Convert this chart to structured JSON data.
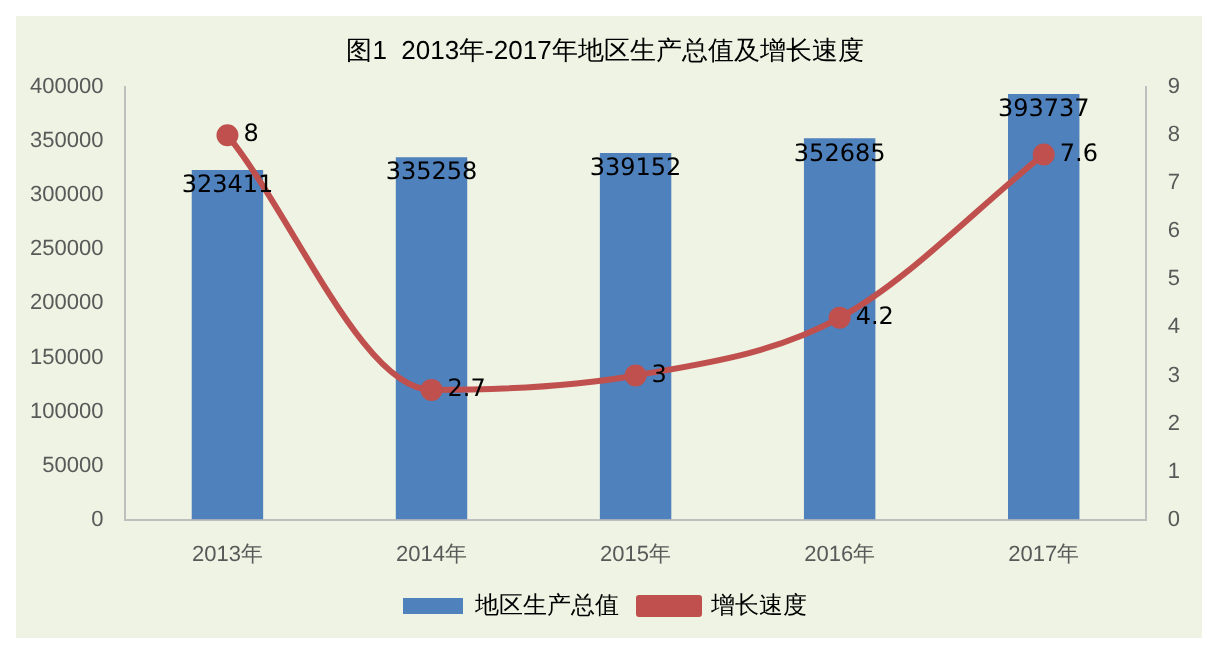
{
  "chart_data": {
    "type": "bar",
    "title": "图1  2013年-2017年地区生产总值及增长速度",
    "categories": [
      "2013年",
      "2014年",
      "2015年",
      "2016年",
      "2017年"
    ],
    "series": [
      {
        "name": "地区生产总值",
        "color": "#4f81bd",
        "values": [
          323411,
          335258,
          339152,
          352685,
          393737
        ]
      },
      {
        "name": "增长速度",
        "type": "line",
        "axis": "y2",
        "color": "#c0504d",
        "marker": "circle",
        "values": [
          8,
          2.7,
          3,
          4.2,
          7.6
        ]
      }
    ],
    "ylim": [
      0,
      400000
    ],
    "yticks": [
      0,
      50000,
      100000,
      150000,
      200000,
      250000,
      300000,
      350000,
      400000
    ],
    "y2lim": [
      0,
      9
    ],
    "y2ticks": [
      0,
      1,
      2,
      3,
      4,
      5,
      6,
      7,
      8,
      9
    ],
    "data_labels": true,
    "legend": "bottom",
    "grid": false
  }
}
